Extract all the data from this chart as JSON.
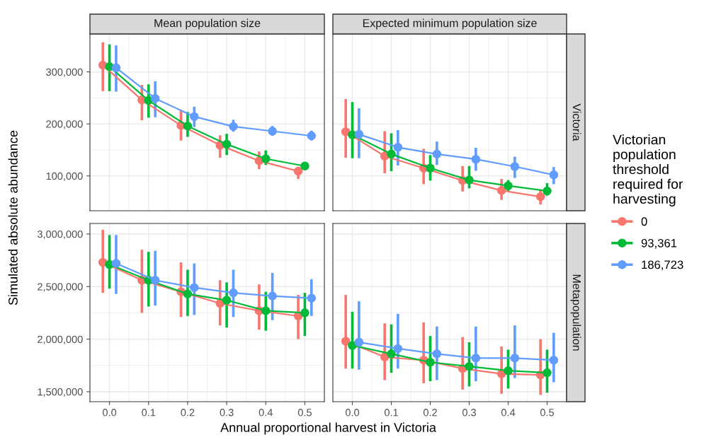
{
  "chart_data": [
    {
      "type": "line",
      "title": "Mean population size",
      "ylabel": "Simulated absolute abundance",
      "marker": "circle",
      "line_style": "solid",
      "grid": true,
      "tick_labels": "y",
      "xlim": [
        -0.05,
        0.55
      ],
      "xticks": [
        0,
        0.1,
        0.2,
        0.3,
        0.4,
        0.5
      ],
      "ylim": [
        33000,
        373000
      ],
      "yticks": [
        {
          "value": 100000,
          "label": "100,000"
        },
        {
          "value": 200000,
          "label": "200,000"
        },
        {
          "value": 300000,
          "label": "300,000"
        }
      ],
      "series": [
        {
          "color": "#f8766d",
          "x": [
            -0.017,
            0.083,
            0.183,
            0.283,
            0.383,
            0.483
          ],
          "values": [
            313000,
            246000,
            197000,
            159000,
            129000,
            109000
          ],
          "errors": [
            [
              263000,
              357000
            ],
            [
              207000,
              275000
            ],
            [
              168000,
              227000
            ],
            [
              135000,
              178000
            ],
            [
              113000,
              147000
            ],
            [
              94000,
              117000
            ]
          ]
        },
        {
          "color": "#00ba38",
          "x": [
            0.0,
            0.1,
            0.2,
            0.3,
            0.4,
            0.5
          ],
          "values": [
            310000,
            245000,
            196000,
            161000,
            133000,
            119000
          ],
          "errors": [
            [
              263000,
              353000
            ],
            [
              212000,
              276000
            ],
            [
              175000,
              223000
            ],
            [
              140000,
              181000
            ],
            [
              121000,
              149000
            ],
            [
              115000,
              123000
            ]
          ]
        },
        {
          "color": "#619cff",
          "x": [
            0.017,
            0.117,
            0.217,
            0.317,
            0.417,
            0.517
          ],
          "values": [
            308000,
            249000,
            214000,
            195000,
            186000,
            177000
          ],
          "errors": [
            [
              262000,
              351000
            ],
            [
              213000,
              282000
            ],
            [
              194000,
              233000
            ],
            [
              185000,
              208000
            ],
            [
              177000,
              196000
            ],
            [
              168000,
              187000
            ]
          ]
        }
      ]
    },
    {
      "type": "line",
      "title": "Expected minimum population size",
      "y2label": "Victoria",
      "legend_title": "Victorian population threshold required for harvesting",
      "legend": "right",
      "marker": "circle",
      "line_style": "solid",
      "grid": true,
      "tick_labels": false,
      "xlim": [
        -0.05,
        0.55
      ],
      "xticks": [
        0,
        0.1,
        0.2,
        0.3,
        0.4,
        0.5
      ],
      "ylim": [
        33000,
        373000
      ],
      "yticks": [
        100000,
        200000,
        300000
      ],
      "series": [
        {
          "name": "0",
          "color": "#f8766d",
          "x": [
            -0.017,
            0.083,
            0.183,
            0.283,
            0.383,
            0.483
          ],
          "values": [
            185000,
            138000,
            115000,
            91000,
            72000,
            60000
          ],
          "errors": [
            [
              135000,
              248000
            ],
            [
              105000,
              186000
            ],
            [
              84000,
              152000
            ],
            [
              70000,
              119000
            ],
            [
              54000,
              94000
            ],
            [
              45000,
              74000
            ]
          ]
        },
        {
          "name": "93,361",
          "color": "#00ba38",
          "x": [
            0.0,
            0.1,
            0.2,
            0.3,
            0.4,
            0.5
          ],
          "values": [
            179000,
            142000,
            115000,
            92000,
            81000,
            71000
          ],
          "errors": [
            [
              134000,
              242000
            ],
            [
              109000,
              182000
            ],
            [
              91000,
              140000
            ],
            [
              76000,
              119000
            ],
            [
              71000,
              92000
            ],
            [
              62000,
              86000
            ]
          ]
        },
        {
          "name": "186,723",
          "color": "#619cff",
          "x": [
            0.017,
            0.117,
            0.217,
            0.317,
            0.417,
            0.517
          ],
          "values": [
            180000,
            155000,
            142000,
            132000,
            118000,
            102000
          ],
          "errors": [
            [
              134000,
              230000
            ],
            [
              120000,
              188000
            ],
            [
              121000,
              166000
            ],
            [
              110000,
              154000
            ],
            [
              96000,
              137000
            ],
            [
              84000,
              117000
            ]
          ]
        }
      ]
    },
    {
      "type": "line",
      "xlabel": "Annual proportional harvest in Victoria",
      "marker": "circle",
      "line_style": "solid",
      "grid": true,
      "xlim": [
        -0.05,
        0.55
      ],
      "xticks": [
        {
          "value": 0,
          "label": "0.0"
        },
        0.1,
        0.2,
        0.3,
        0.4,
        0.5
      ],
      "ylim": [
        1405000,
        3100000
      ],
      "yticks": [
        {
          "value": 1500000,
          "label": "1,500,000"
        },
        {
          "value": 2000000,
          "label": "2,000,000"
        },
        {
          "value": 2500000,
          "label": "2,500,000"
        },
        {
          "value": 3000000,
          "label": "3,000,000"
        }
      ],
      "series": [
        {
          "color": "#f8766d",
          "x": [
            -0.017,
            0.083,
            0.183,
            0.283,
            0.383,
            0.483
          ],
          "values": [
            2730000,
            2560000,
            2450000,
            2340000,
            2270000,
            2220000
          ],
          "errors": [
            [
              2440000,
              3040000
            ],
            [
              2250000,
              2850000
            ],
            [
              2210000,
              2730000
            ],
            [
              2130000,
              2560000
            ],
            [
              2090000,
              2520000
            ],
            [
              2000000,
              2420000
            ]
          ]
        },
        {
          "color": "#00ba38",
          "x": [
            0.0,
            0.1,
            0.2,
            0.3,
            0.4,
            0.5
          ],
          "values": [
            2710000,
            2560000,
            2430000,
            2370000,
            2270000,
            2250000
          ],
          "errors": [
            [
              2480000,
              2990000
            ],
            [
              2310000,
              2830000
            ],
            [
              2220000,
              2660000
            ],
            [
              2110000,
              2540000
            ],
            [
              2080000,
              2450000
            ],
            [
              2030000,
              2440000
            ]
          ]
        },
        {
          "color": "#619cff",
          "x": [
            0.017,
            0.117,
            0.217,
            0.317,
            0.417,
            0.517
          ],
          "values": [
            2720000,
            2560000,
            2490000,
            2440000,
            2410000,
            2390000
          ],
          "errors": [
            [
              2430000,
              2990000
            ],
            [
              2320000,
              2840000
            ],
            [
              2230000,
              2720000
            ],
            [
              2210000,
              2660000
            ],
            [
              2180000,
              2630000
            ],
            [
              2220000,
              2570000
            ]
          ]
        }
      ]
    },
    {
      "type": "line",
      "y2label": "Metapopulation",
      "marker": "circle",
      "line_style": "solid",
      "grid": true,
      "tick_labels": "x",
      "xlim": [
        -0.05,
        0.55
      ],
      "xticks": [
        {
          "value": 0,
          "label": "0.0"
        },
        0.1,
        0.2,
        0.3,
        0.4,
        0.5
      ],
      "ylim": [
        1405000,
        3100000
      ],
      "yticks": [
        1500000,
        2000000,
        2500000,
        3000000
      ],
      "series": [
        {
          "color": "#f8766d",
          "x": [
            -0.017,
            0.083,
            0.183,
            0.283,
            0.383,
            0.483
          ],
          "values": [
            1980000,
            1830000,
            1800000,
            1720000,
            1670000,
            1660000
          ],
          "errors": [
            [
              1720000,
              2420000
            ],
            [
              1610000,
              2150000
            ],
            [
              1580000,
              2160000
            ],
            [
              1520000,
              2020000
            ],
            [
              1480000,
              1930000
            ],
            [
              1470000,
              2000000
            ]
          ]
        },
        {
          "color": "#00ba38",
          "x": [
            0.0,
            0.1,
            0.2,
            0.3,
            0.4,
            0.5
          ],
          "values": [
            1940000,
            1860000,
            1780000,
            1740000,
            1700000,
            1680000
          ],
          "errors": [
            [
              1720000,
              2260000
            ],
            [
              1680000,
              2140000
            ],
            [
              1600000,
              2030000
            ],
            [
              1550000,
              1970000
            ],
            [
              1530000,
              1900000
            ],
            [
              1490000,
              1900000
            ]
          ]
        },
        {
          "color": "#619cff",
          "x": [
            0.017,
            0.117,
            0.217,
            0.317,
            0.417,
            0.517
          ],
          "values": [
            1970000,
            1910000,
            1860000,
            1820000,
            1820000,
            1800000
          ],
          "errors": [
            [
              1710000,
              2360000
            ],
            [
              1720000,
              2240000
            ],
            [
              1610000,
              2120000
            ],
            [
              1600000,
              2120000
            ],
            [
              1630000,
              2130000
            ],
            [
              1590000,
              2060000
            ]
          ]
        }
      ]
    }
  ]
}
